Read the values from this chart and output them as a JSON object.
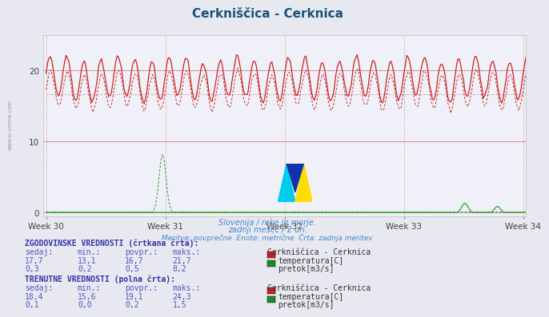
{
  "title": "Cerkniščica - Cerknica",
  "title_color": "#1a5276",
  "bg_color": "#e8e8f0",
  "plot_bg_color": "#f0f0f8",
  "grid_color_h": "#d08080",
  "grid_color_v": "#d08080",
  "x_ticks": [
    "Week 30",
    "Week 31",
    "Week 32",
    "Week 33",
    "Week 34"
  ],
  "x_tick_positions": [
    0,
    84,
    168,
    252,
    336
  ],
  "y_ticks": [
    0,
    10,
    20
  ],
  "ylim": [
    -0.5,
    25
  ],
  "xlim": [
    -2,
    338
  ],
  "subtitle_lines": [
    "Slovenija / reke in morje.",
    "zadnji mesec / 2 uri.",
    "Meritve: povprečne  Enote: metrične  Črta: zadnja meritev"
  ],
  "subtitle_color": "#4488cc",
  "temp_hist_color": "#bb1111",
  "temp_curr_color": "#cc2222",
  "flow_hist_color": "#118811",
  "flow_curr_color": "#22aa22",
  "hist_avg_temp": 16.7,
  "hist_min_temp": 13.1,
  "hist_max_temp": 21.7,
  "hist_avg_flow": 0.5,
  "hist_max_flow": 8.2,
  "curr_avg_temp": 19.1,
  "curr_min_temp": 15.6,
  "curr_max_temp": 24.3,
  "curr_avg_flow": 0.2,
  "curr_max_flow": 1.5,
  "table_text_color": "#5555cc",
  "table_label_color": "#3333aa",
  "n_points": 360,
  "temp_period": 12,
  "curr_temp_base": 18.8,
  "curr_temp_amp": 2.8,
  "hist_temp_base": 17.2,
  "hist_temp_amp": 2.5,
  "sidebar_text": "www.si-vreme.com",
  "sidebar_color": "#9999bb",
  "swatch_red": "#cc2222",
  "swatch_green": "#228822",
  "logo_colors": [
    "#00ccff",
    "#ffee00",
    "#003399"
  ]
}
